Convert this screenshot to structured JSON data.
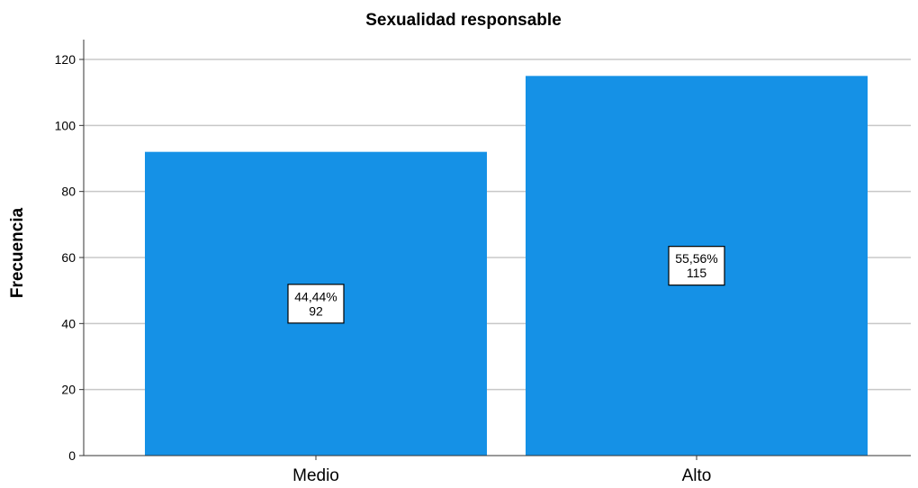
{
  "chart_data": {
    "type": "bar",
    "title": "Sexualidad responsable",
    "xlabel": "",
    "ylabel": "Frecuencia",
    "categories": [
      "Medio",
      "Alto"
    ],
    "values": [
      92,
      115
    ],
    "data_labels": [
      {
        "percent": "44,44%",
        "count": "92"
      },
      {
        "percent": "55,56%",
        "count": "115"
      }
    ],
    "yticks": [
      "0",
      "20",
      "40",
      "60",
      "80",
      "100",
      "120"
    ],
    "ylim": [
      0,
      126
    ],
    "grid": true,
    "bar_color": "#1591E6"
  }
}
